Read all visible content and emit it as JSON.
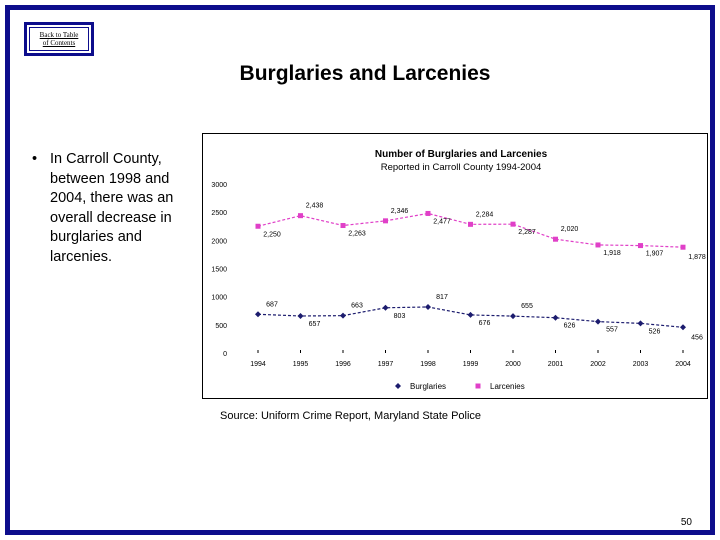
{
  "nav": {
    "back_line1": "Back to Table",
    "back_line2": "of Contents"
  },
  "slide": {
    "title": "Burglaries and Larcenies",
    "bullet": "In Carroll County, between 1998 and 2004, there was an overall decrease in burglaries and larcenies.",
    "source": "Source: Uniform Crime Report, Maryland State Police",
    "page_number": "50"
  },
  "colors": {
    "frame": "#0d0d8c",
    "burglaries": "#1c1c6e",
    "larcenies": "#e040c8"
  },
  "chart_data": {
    "type": "line",
    "title": "Number of Burglaries and Larcenies",
    "subtitle": "Reported in Carroll County 1994-2004",
    "x": [
      "1994",
      "1995",
      "1996",
      "1997",
      "1998",
      "1999",
      "2000",
      "2001",
      "2002",
      "2003",
      "2004"
    ],
    "ylim": [
      0,
      3000
    ],
    "yticks": [
      "0",
      "500",
      "1000",
      "1500",
      "2000",
      "2500",
      "3000"
    ],
    "legend_position": "bottom",
    "grid": false,
    "series": [
      {
        "name": "Burglaries",
        "values": [
          687,
          657,
          663,
          803,
          817,
          676,
          655,
          626,
          557,
          526,
          456
        ],
        "labels": [
          "687",
          "657",
          "663",
          "803",
          "817",
          "676",
          "655",
          "626",
          "557",
          "526",
          "456"
        ]
      },
      {
        "name": "Larcenies",
        "values": [
          2250,
          2438,
          2263,
          2346,
          2477,
          2284,
          2287,
          2020,
          1918,
          1907,
          1878
        ],
        "labels": [
          "2,250",
          "2,438",
          "2,263",
          "2,346",
          "2,477",
          "2,284",
          "2,287",
          "2,020",
          "1,918",
          "1,907",
          "1,878"
        ]
      }
    ]
  }
}
